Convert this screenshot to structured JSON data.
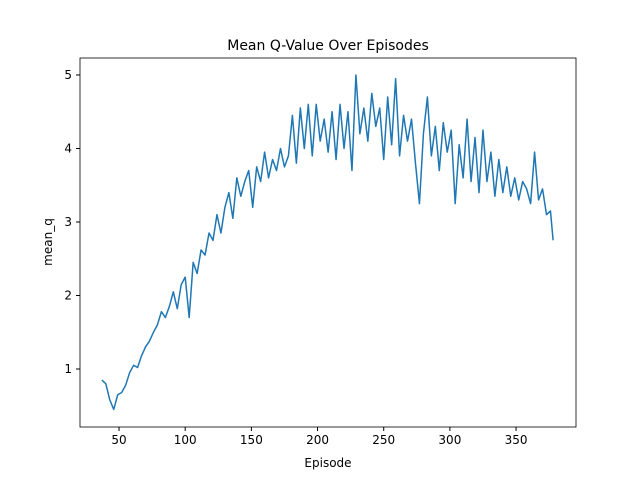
{
  "chart_data": {
    "type": "line",
    "title": "Mean Q-Value Over Episodes",
    "xlabel": "Episode",
    "ylabel": "mean_q",
    "x": [
      37,
      40,
      43,
      46,
      49,
      52,
      55,
      58,
      61,
      64,
      67,
      70,
      73,
      76,
      79,
      82,
      85,
      88,
      91,
      94,
      97,
      100,
      103,
      106,
      109,
      112,
      115,
      118,
      121,
      124,
      127,
      130,
      133,
      136,
      139,
      142,
      145,
      148,
      151,
      154,
      157,
      160,
      163,
      166,
      169,
      172,
      175,
      178,
      181,
      184,
      187,
      190,
      193,
      196,
      199,
      202,
      205,
      208,
      211,
      214,
      217,
      220,
      223,
      226,
      229,
      232,
      235,
      238,
      241,
      244,
      247,
      250,
      253,
      256,
      259,
      262,
      265,
      268,
      271,
      274,
      277,
      280,
      283,
      286,
      289,
      292,
      295,
      298,
      301,
      304,
      307,
      310,
      313,
      316,
      319,
      322,
      325,
      328,
      331,
      334,
      337,
      340,
      343,
      346,
      349,
      352,
      355,
      358,
      361,
      364,
      367,
      370,
      373,
      376,
      378
    ],
    "series": [
      {
        "name": "mean_q",
        "color": "#1f77b4",
        "values": [
          0.85,
          0.8,
          0.58,
          0.45,
          0.65,
          0.68,
          0.78,
          0.95,
          1.05,
          1.02,
          1.18,
          1.3,
          1.38,
          1.5,
          1.6,
          1.78,
          1.7,
          1.85,
          2.05,
          1.82,
          2.15,
          2.25,
          1.7,
          2.45,
          2.3,
          2.62,
          2.55,
          2.85,
          2.75,
          3.1,
          2.85,
          3.2,
          3.4,
          3.05,
          3.6,
          3.35,
          3.55,
          3.7,
          3.2,
          3.75,
          3.55,
          3.95,
          3.6,
          3.85,
          3.7,
          4.0,
          3.75,
          3.9,
          4.45,
          3.8,
          4.55,
          4.0,
          4.6,
          3.9,
          4.6,
          4.1,
          4.4,
          3.95,
          4.5,
          3.85,
          4.6,
          4.0,
          4.5,
          3.7,
          5.0,
          4.2,
          4.55,
          4.1,
          4.75,
          4.3,
          4.55,
          3.85,
          4.7,
          4.05,
          4.95,
          3.9,
          4.45,
          4.1,
          4.4,
          3.8,
          3.25,
          4.2,
          4.7,
          3.9,
          4.3,
          3.7,
          4.35,
          3.95,
          4.25,
          3.25,
          4.05,
          3.6,
          4.4,
          3.55,
          4.15,
          3.4,
          4.25,
          3.55,
          3.95,
          3.35,
          3.85,
          3.4,
          3.75,
          3.35,
          3.6,
          3.3,
          3.55,
          3.45,
          3.25,
          3.95,
          3.3,
          3.45,
          3.1,
          3.15,
          2.75
        ]
      }
    ],
    "xlim": [
      20.5,
      395.3
    ],
    "ylim": [
      0.211,
      5.231
    ],
    "xticks": [
      50,
      100,
      150,
      200,
      250,
      300,
      350
    ],
    "yticks": [
      1,
      2,
      3,
      4,
      5
    ]
  }
}
